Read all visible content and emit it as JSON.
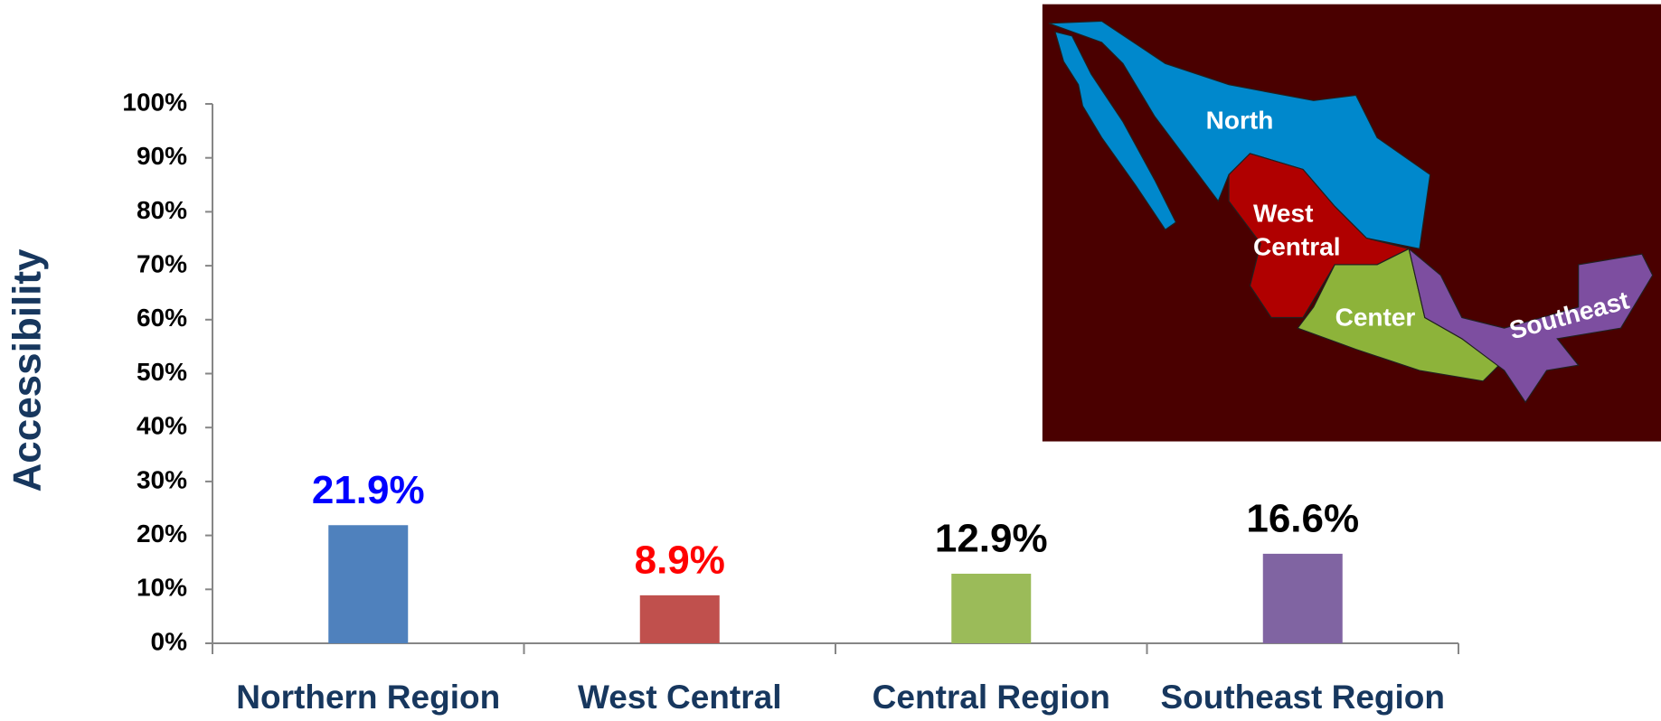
{
  "chart_data": {
    "type": "bar",
    "y_axis_title": "Accessibility",
    "categories": [
      "Northern Region",
      "West Central",
      "Central Region",
      "Southeast Region"
    ],
    "values": [
      21.9,
      8.9,
      12.9,
      16.6
    ],
    "value_labels": [
      "21.9%",
      "8.9%",
      "12.9%",
      "16.6%"
    ],
    "colors": [
      "#4f81bd",
      "#c0504d",
      "#9bbb59",
      "#8064a2"
    ],
    "value_label_colors": [
      "#0000ff",
      "#ff0000",
      "#000000",
      "#000000"
    ],
    "ylim": [
      0,
      100
    ],
    "yticks": [
      {
        "value": 0,
        "label": "0%"
      },
      {
        "value": 10,
        "label": "10%"
      },
      {
        "value": 20,
        "label": "20%"
      },
      {
        "value": 30,
        "label": "30%"
      },
      {
        "value": 40,
        "label": "40%"
      },
      {
        "value": 50,
        "label": "50%"
      },
      {
        "value": 60,
        "label": "60%"
      },
      {
        "value": 70,
        "label": "70%"
      },
      {
        "value": 80,
        "label": "80%"
      },
      {
        "value": 90,
        "label": "90%"
      },
      {
        "value": 100,
        "label": "100%"
      }
    ],
    "grid": false
  },
  "map": {
    "labels": {
      "north": [
        "North"
      ],
      "west_central": [
        "West",
        "Central"
      ],
      "center": [
        "Center"
      ],
      "southeast": [
        "Southeast"
      ]
    }
  }
}
